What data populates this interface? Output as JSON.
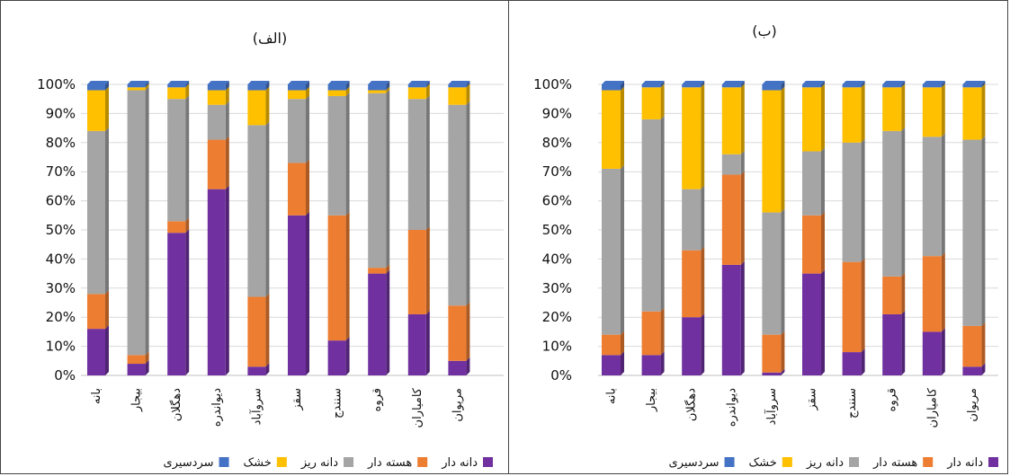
{
  "chart_data": [
    {
      "type": "bar",
      "stacked": "percent",
      "title": "(الف)",
      "categories": [
        "بانه",
        "بیجار",
        "دهگلان",
        "دیواندره",
        "سروآباد",
        "سقز",
        "سنندج",
        "قروه",
        "کامیاران",
        "مریوان"
      ],
      "series": [
        {
          "name": "دانه دار",
          "color": "#7030A0",
          "values": [
            16,
            4,
            49,
            64,
            3,
            55,
            12,
            35,
            21,
            5
          ]
        },
        {
          "name": "هسته دار",
          "color": "#ED7D31",
          "values": [
            12,
            3,
            4,
            17,
            24,
            18,
            43,
            2,
            29,
            19
          ]
        },
        {
          "name": "دانه ریز",
          "color": "#A5A5A5",
          "values": [
            56,
            91,
            42,
            12,
            59,
            22,
            41,
            60,
            45,
            69
          ]
        },
        {
          "name": "خشک",
          "color": "#FFC000",
          "values": [
            14,
            1,
            4,
            5,
            12,
            3,
            2,
            1,
            4,
            6
          ]
        },
        {
          "name": "سردسیری",
          "color": "#4472C4",
          "values": [
            2,
            1,
            1,
            2,
            2,
            2,
            2,
            2,
            1,
            1
          ]
        }
      ],
      "y_ticks": [
        "0%",
        "10%",
        "20%",
        "30%",
        "40%",
        "50%",
        "60%",
        "70%",
        "80%",
        "90%",
        "100%"
      ],
      "ylim": [
        0,
        100
      ],
      "grid": true,
      "legend_position": "bottom"
    },
    {
      "type": "bar",
      "stacked": "percent",
      "title": "(ب)",
      "categories": [
        "بانه",
        "بیجار",
        "دهگلان",
        "دیواندره",
        "سروآباد",
        "سقز",
        "سنندج",
        "قروه",
        "کامیاران",
        "مریوان"
      ],
      "series": [
        {
          "name": "دانه دار",
          "color": "#7030A0",
          "values": [
            7,
            7,
            20,
            38,
            1,
            35,
            8,
            21,
            15,
            3
          ]
        },
        {
          "name": "هسته دار",
          "color": "#ED7D31",
          "values": [
            7,
            15,
            23,
            31,
            13,
            20,
            31,
            13,
            26,
            14
          ]
        },
        {
          "name": "دانه ریز",
          "color": "#A5A5A5",
          "values": [
            57,
            66,
            21,
            7,
            42,
            22,
            41,
            50,
            41,
            64
          ]
        },
        {
          "name": "خشک",
          "color": "#FFC000",
          "values": [
            27,
            11,
            35,
            23,
            42,
            22,
            19,
            15,
            17,
            18
          ]
        },
        {
          "name": "سردسیری",
          "color": "#4472C4",
          "values": [
            2,
            1,
            1,
            1,
            2,
            1,
            1,
            1,
            1,
            1
          ]
        }
      ],
      "y_ticks": [
        "0%",
        "10%",
        "20%",
        "30%",
        "40%",
        "50%",
        "60%",
        "70%",
        "80%",
        "90%",
        "100%"
      ],
      "ylim": [
        0,
        100
      ],
      "grid": true,
      "legend_position": "bottom"
    }
  ]
}
